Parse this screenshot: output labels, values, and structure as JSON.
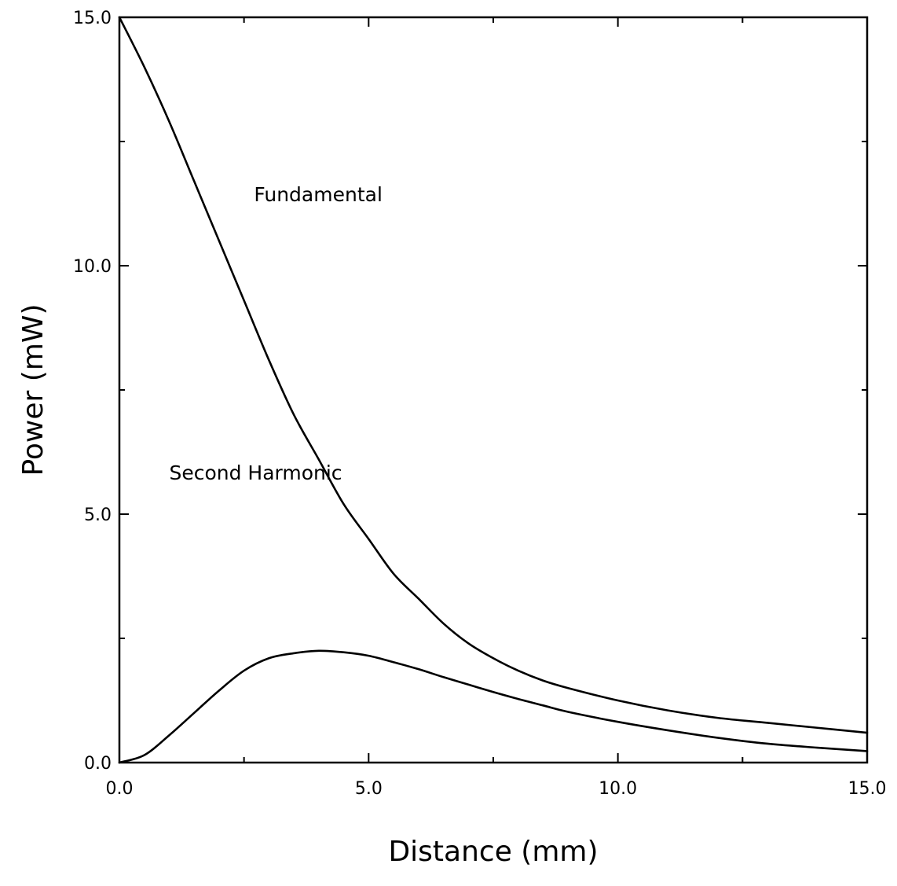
{
  "chart_data": {
    "type": "line",
    "xlabel": "Distance (mm)",
    "ylabel": "Power (mW)",
    "xlim": [
      0,
      15
    ],
    "ylim": [
      0,
      15
    ],
    "x_ticks": [
      "0.0",
      "5.0",
      "10.0",
      "15.0"
    ],
    "y_ticks": [
      "0.0",
      "5.0",
      "10.0",
      "15.0"
    ],
    "grid": false,
    "series": [
      {
        "name": "Fundamental",
        "x": [
          0,
          0.5,
          1,
          1.5,
          2,
          2.5,
          3,
          3.5,
          4,
          4.5,
          5,
          5.5,
          6,
          6.5,
          7,
          7.5,
          8,
          8.5,
          9,
          10,
          11,
          12,
          13,
          14,
          15
        ],
        "y": [
          15.0,
          14.0,
          12.9,
          11.7,
          10.5,
          9.3,
          8.1,
          7.0,
          6.1,
          5.2,
          4.5,
          3.8,
          3.3,
          2.8,
          2.4,
          2.1,
          1.85,
          1.65,
          1.5,
          1.25,
          1.05,
          0.9,
          0.8,
          0.7,
          0.6
        ]
      },
      {
        "name": "Second Harmonic",
        "x": [
          0,
          0.5,
          1,
          1.5,
          2,
          2.5,
          3,
          3.5,
          4,
          4.5,
          5,
          5.5,
          6,
          6.5,
          7,
          7.5,
          8,
          8.5,
          9,
          10,
          11,
          12,
          13,
          14,
          15
        ],
        "y": [
          0,
          0.15,
          0.55,
          1.0,
          1.45,
          1.85,
          2.1,
          2.2,
          2.25,
          2.22,
          2.15,
          2.02,
          1.88,
          1.72,
          1.57,
          1.42,
          1.28,
          1.15,
          1.02,
          0.82,
          0.65,
          0.5,
          0.38,
          0.3,
          0.23
        ]
      }
    ],
    "annotations": [
      {
        "text": "Fundamental",
        "x": 2.7,
        "y": 11.3
      },
      {
        "text": "Second Harmonic",
        "x": 1.0,
        "y": 5.7
      }
    ]
  }
}
